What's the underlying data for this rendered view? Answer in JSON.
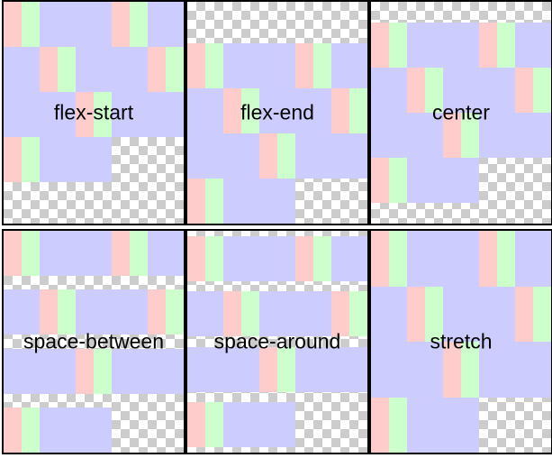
{
  "colors": {
    "pink": "#ffcccc",
    "green": "#ccffcc",
    "blue": "#ccccff",
    "checker_light": "#ffffff",
    "checker_dark": "#cccccc",
    "border": "#000000"
  },
  "item_pattern": [
    "pink",
    "green",
    "blue",
    "blue"
  ],
  "panels": [
    {
      "label": "flex-start",
      "align_content": "flex-start"
    },
    {
      "label": "flex-end",
      "align_content": "flex-end"
    },
    {
      "label": "center",
      "align_content": "center"
    },
    {
      "label": "space-between",
      "align_content": "space-between"
    },
    {
      "label": "space-around",
      "align_content": "space-around"
    },
    {
      "label": "stretch",
      "align_content": "stretch"
    }
  ]
}
